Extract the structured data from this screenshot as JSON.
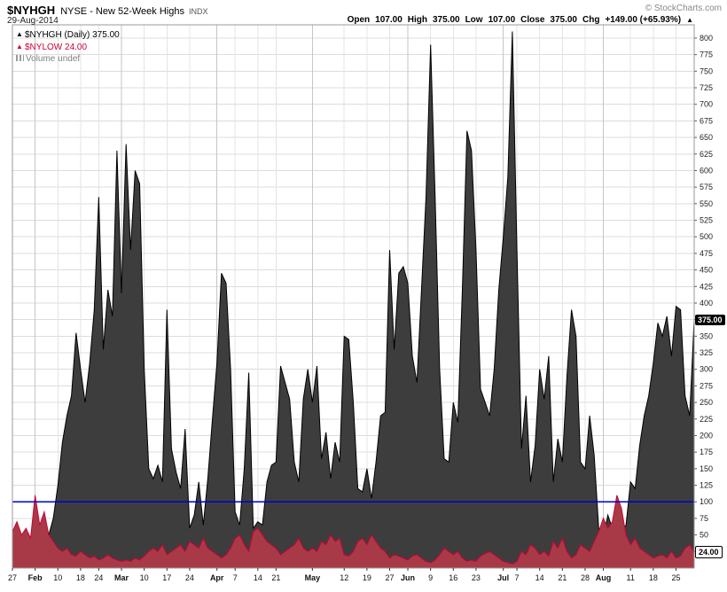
{
  "header": {
    "symbol": "$NYHGH",
    "name": "NYSE - New 52-Week Highs",
    "exchange": "INDX",
    "date": "29-Aug-2014",
    "copyright": "© StockCharts.com",
    "quote": {
      "open_label": "Open",
      "open": "107.00",
      "high_label": "High",
      "high": "375.00",
      "low_label": "Low",
      "low": "107.00",
      "close_label": "Close",
      "close": "375.00",
      "chg_label": "Chg",
      "chg": "+149.00 (+65.93%)",
      "arrow": "▲"
    }
  },
  "legend": {
    "series1": "$NYHGH (Daily) 375.00",
    "series2": "$NYLOW 24.00",
    "series3": "Volume undef"
  },
  "price_tags": {
    "nyhgh": "375.00",
    "nylow": "24.00"
  },
  "colors": {
    "nyhgh_fill": "#3d3d3d",
    "nyhgh_stroke": "#000000",
    "nylow_fill": "#a83a48",
    "nylow_stroke": "#cc0033",
    "reference_line": "#0000cc",
    "grid": "#dcdcdc",
    "grid_month": "#c6c6c6",
    "border": "#999999"
  },
  "chart_data": {
    "type": "area",
    "title": "$NYHGH (Daily)",
    "xlabel": "",
    "ylabel": "",
    "legend_entries": [
      "$NYHGH (Daily) 375.00",
      "$NYLOW 24.00",
      "Volume undef"
    ],
    "legend_position": "top-left",
    "grid": true,
    "y_axis": {
      "min": 0,
      "max": 820,
      "tick_start": 25,
      "tick_end": 800,
      "tick_step": 25,
      "side": "right"
    },
    "reference_line": {
      "value": 100
    },
    "x_ticks": [
      {
        "label": "27",
        "index": 0,
        "month": false
      },
      {
        "label": "Feb",
        "index": 5,
        "month": true
      },
      {
        "label": "10",
        "index": 10,
        "month": false
      },
      {
        "label": "18",
        "index": 15,
        "month": false
      },
      {
        "label": "24",
        "index": 19,
        "month": false
      },
      {
        "label": "Mar",
        "index": 24,
        "month": true
      },
      {
        "label": "10",
        "index": 29,
        "month": false
      },
      {
        "label": "17",
        "index": 34,
        "month": false
      },
      {
        "label": "24",
        "index": 39,
        "month": false
      },
      {
        "label": "Apr",
        "index": 45,
        "month": true
      },
      {
        "label": "7",
        "index": 49,
        "month": false
      },
      {
        "label": "14",
        "index": 54,
        "month": false
      },
      {
        "label": "21",
        "index": 58,
        "month": false
      },
      {
        "label": "May",
        "index": 66,
        "month": true
      },
      {
        "label": "12",
        "index": 73,
        "month": false
      },
      {
        "label": "19",
        "index": 78,
        "month": false
      },
      {
        "label": "27",
        "index": 83,
        "month": false
      },
      {
        "label": "Jun",
        "index": 87,
        "month": true
      },
      {
        "label": "9",
        "index": 92,
        "month": false
      },
      {
        "label": "16",
        "index": 97,
        "month": false
      },
      {
        "label": "23",
        "index": 102,
        "month": false
      },
      {
        "label": "Jul",
        "index": 108,
        "month": true
      },
      {
        "label": "7",
        "index": 111,
        "month": false
      },
      {
        "label": "14",
        "index": 116,
        "month": false
      },
      {
        "label": "21",
        "index": 121,
        "month": false
      },
      {
        "label": "28",
        "index": 126,
        "month": false
      },
      {
        "label": "Aug",
        "index": 130,
        "month": true
      },
      {
        "label": "11",
        "index": 136,
        "month": false
      },
      {
        "label": "18",
        "index": 141,
        "month": false
      },
      {
        "label": "25",
        "index": 146,
        "month": false
      }
    ],
    "series": [
      {
        "name": "$NYHGH",
        "last": 375.0,
        "values": [
          30,
          22,
          18,
          35,
          28,
          20,
          28,
          35,
          50,
          75,
          125,
          190,
          230,
          260,
          355,
          300,
          250,
          310,
          390,
          560,
          330,
          420,
          380,
          630,
          415,
          640,
          480,
          600,
          580,
          300,
          150,
          135,
          155,
          130,
          390,
          180,
          145,
          120,
          210,
          60,
          80,
          130,
          65,
          135,
          225,
          310,
          445,
          430,
          300,
          85,
          65,
          150,
          295,
          60,
          70,
          65,
          130,
          155,
          160,
          305,
          280,
          255,
          160,
          130,
          255,
          300,
          250,
          305,
          165,
          205,
          135,
          190,
          160,
          350,
          345,
          250,
          120,
          115,
          150,
          105,
          160,
          230,
          235,
          480,
          330,
          445,
          455,
          430,
          320,
          280,
          420,
          560,
          790,
          560,
          300,
          165,
          160,
          250,
          220,
          420,
          660,
          630,
          480,
          270,
          250,
          230,
          300,
          420,
          500,
          590,
          810,
          480,
          180,
          260,
          130,
          185,
          300,
          255,
          320,
          130,
          195,
          160,
          290,
          390,
          350,
          160,
          150,
          230,
          170,
          60,
          45,
          80,
          60,
          30,
          55,
          65,
          130,
          120,
          185,
          230,
          260,
          310,
          370,
          350,
          380,
          320,
          395,
          390,
          260,
          230,
          375
        ]
      },
      {
        "name": "$NYLOW",
        "last": 24.0,
        "values": [
          55,
          70,
          50,
          60,
          45,
          110,
          65,
          85,
          50,
          40,
          30,
          25,
          30,
          20,
          18,
          25,
          20,
          15,
          18,
          12,
          15,
          20,
          15,
          12,
          10,
          12,
          10,
          15,
          12,
          18,
          25,
          30,
          25,
          35,
          20,
          25,
          30,
          35,
          25,
          40,
          35,
          30,
          45,
          30,
          25,
          20,
          15,
          20,
          30,
          45,
          50,
          35,
          25,
          55,
          60,
          50,
          40,
          35,
          30,
          20,
          25,
          30,
          35,
          45,
          30,
          25,
          30,
          25,
          40,
          35,
          50,
          40,
          45,
          20,
          18,
          25,
          40,
          45,
          35,
          50,
          40,
          30,
          25,
          15,
          20,
          18,
          15,
          12,
          18,
          20,
          15,
          10,
          8,
          12,
          20,
          30,
          25,
          20,
          25,
          15,
          10,
          12,
          10,
          18,
          22,
          25,
          20,
          15,
          10,
          8,
          6,
          10,
          25,
          20,
          35,
          30,
          20,
          25,
          18,
          40,
          30,
          45,
          25,
          15,
          20,
          35,
          30,
          25,
          40,
          55,
          75,
          60,
          70,
          110,
          90,
          50,
          35,
          45,
          30,
          25,
          20,
          15,
          18,
          20,
          15,
          25,
          15,
          18,
          30,
          35,
          24
        ]
      }
    ]
  }
}
